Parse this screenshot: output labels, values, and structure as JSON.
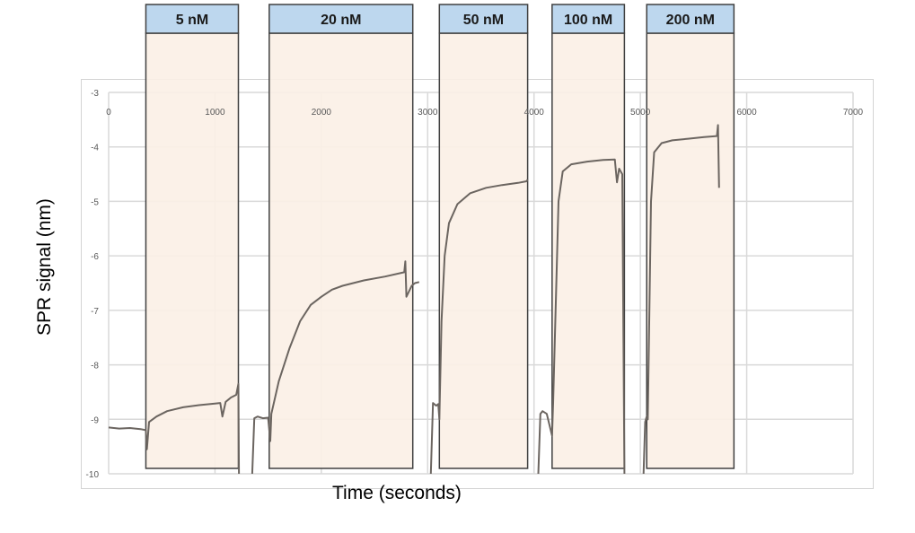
{
  "chart_data": {
    "type": "line",
    "title": "",
    "xlabel": "Time (seconds)",
    "ylabel": "SPR signal (nm)",
    "xlim": [
      0,
      7000
    ],
    "ylim": [
      -10,
      -3
    ],
    "x_ticks": [
      0,
      1000,
      2000,
      3000,
      4000,
      5000,
      6000,
      7000
    ],
    "x_tick_labels": [
      "0",
      "1000",
      "2000",
      "3000",
      "4000",
      "5000",
      "6000",
      "7000"
    ],
    "y_ticks": [
      -3,
      -4,
      -5,
      -6,
      -7,
      -8,
      -9,
      -10
    ],
    "y_tick_labels": [
      "-3",
      "-4",
      "-5",
      "-6",
      "-7",
      "-8",
      "-9",
      "-10"
    ],
    "grid": true,
    "legend": null,
    "line_color": "#6b6560",
    "injection_windows": [
      {
        "label": "5 nM",
        "x_start": 350,
        "x_end": 1220
      },
      {
        "label": "20 nM",
        "x_start": 1510,
        "x_end": 2860
      },
      {
        "label": "50 nM",
        "x_start": 3110,
        "x_end": 3940
      },
      {
        "label": "100 nM",
        "x_start": 4170,
        "x_end": 4850
      },
      {
        "label": "200 nM",
        "x_start": 5060,
        "x_end": 5880
      }
    ],
    "window_header_color": "#bdd7ee",
    "window_fill_color": "#fbefe6",
    "series": [
      {
        "name": "5 nM",
        "x": [
          0,
          100,
          200,
          300,
          350,
          360,
          380,
          450,
          550,
          700,
          850,
          1000,
          1050,
          1070,
          1100,
          1150,
          1200,
          1220,
          1225
        ],
        "y": [
          -9.15,
          -9.17,
          -9.16,
          -9.18,
          -9.2,
          -9.55,
          -9.05,
          -8.95,
          -8.85,
          -8.78,
          -8.74,
          -8.71,
          -8.7,
          -8.95,
          -8.68,
          -8.6,
          -8.55,
          -8.35,
          -10.0
        ]
      },
      {
        "name": "20 nM",
        "x": [
          1350,
          1370,
          1400,
          1450,
          1500,
          1520,
          1530,
          1600,
          1700,
          1800,
          1900,
          2000,
          2100,
          2200,
          2400,
          2600,
          2780,
          2790,
          2800,
          2850,
          2880,
          2920
        ],
        "y": [
          -10.0,
          -8.98,
          -8.95,
          -8.98,
          -8.97,
          -9.4,
          -8.9,
          -8.3,
          -7.7,
          -7.2,
          -6.9,
          -6.75,
          -6.62,
          -6.55,
          -6.45,
          -6.38,
          -6.3,
          -6.1,
          -6.75,
          -6.55,
          -6.5,
          -6.48
        ]
      },
      {
        "name": "50 nM",
        "x": [
          3030,
          3050,
          3080,
          3100,
          3110,
          3130,
          3160,
          3200,
          3280,
          3400,
          3550,
          3700,
          3850,
          3930,
          3940
        ],
        "y": [
          -10.0,
          -8.7,
          -8.75,
          -8.72,
          -9.0,
          -7.2,
          -6.0,
          -5.4,
          -5.05,
          -4.85,
          -4.75,
          -4.7,
          -4.66,
          -4.63,
          -4.6
        ]
      },
      {
        "name": "100 nM",
        "x": [
          4040,
          4060,
          4080,
          4120,
          4170,
          4180,
          4230,
          4270,
          4350,
          4500,
          4650,
          4760,
          4780,
          4800,
          4830,
          4850
        ],
        "y": [
          -10.0,
          -8.9,
          -8.85,
          -8.9,
          -9.3,
          -8.7,
          -5.0,
          -4.45,
          -4.32,
          -4.27,
          -4.24,
          -4.23,
          -4.65,
          -4.4,
          -4.5,
          -10.0
        ]
      },
      {
        "name": "200 nM",
        "x": [
          5030,
          5045,
          5060,
          5070,
          5100,
          5130,
          5200,
          5300,
          5450,
          5600,
          5720,
          5730,
          5740
        ],
        "y": [
          -10.0,
          -9.05,
          -8.95,
          -9.0,
          -5.0,
          -4.1,
          -3.93,
          -3.88,
          -3.85,
          -3.82,
          -3.8,
          -3.6,
          -4.75
        ]
      }
    ]
  },
  "headers": [
    {
      "label": "5 nM"
    },
    {
      "label": "20 nM"
    },
    {
      "label": "50 nM"
    },
    {
      "label": "100 nM"
    },
    {
      "label": "200 nM"
    }
  ],
  "axes": {
    "x_title": "Time (seconds)",
    "y_title": "SPR signal (nm)"
  }
}
